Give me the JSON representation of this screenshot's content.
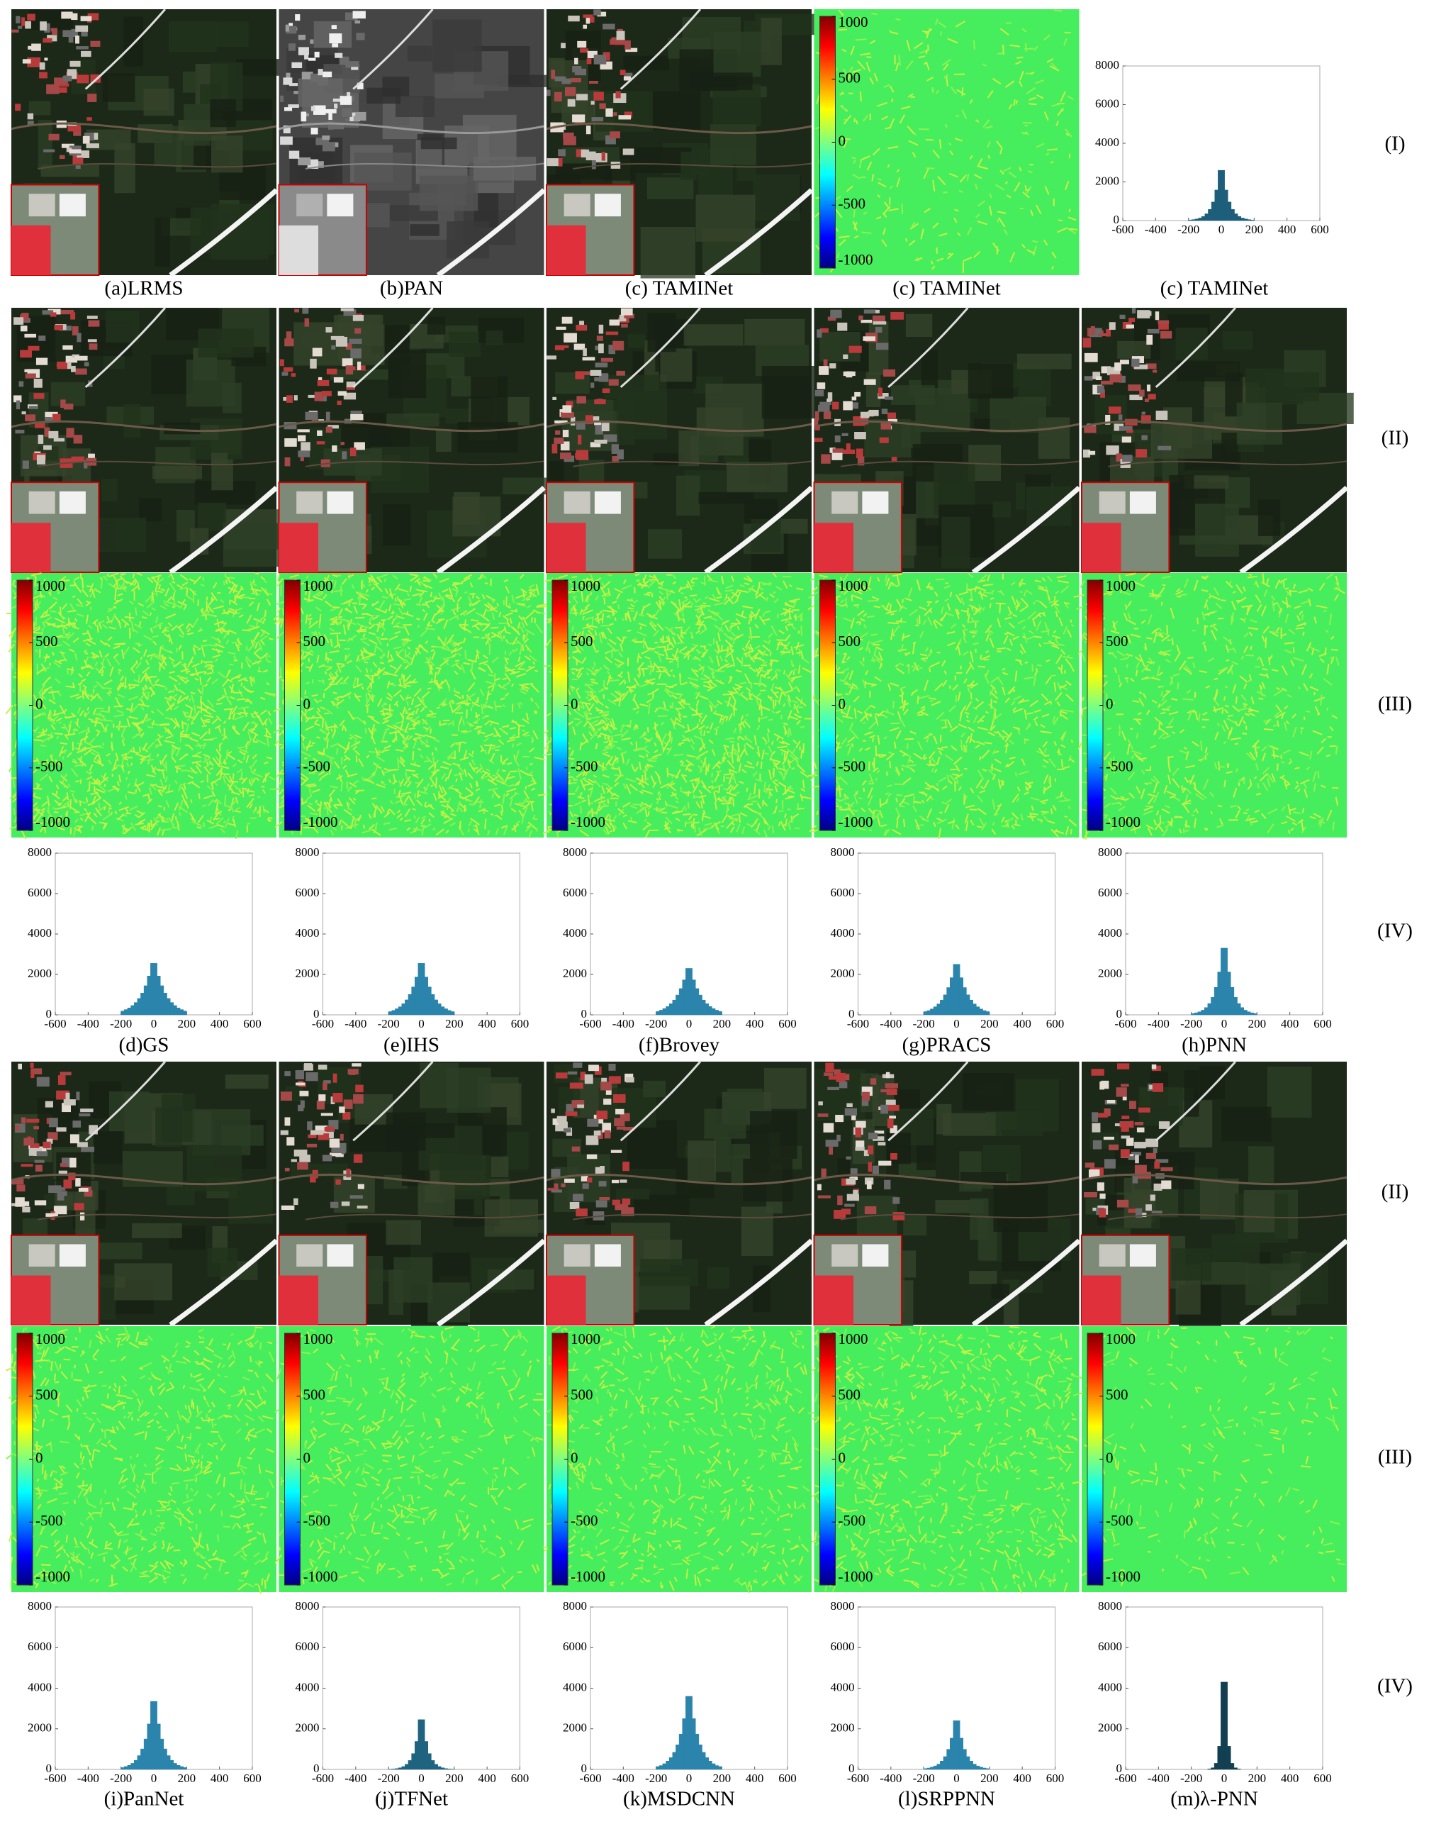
{
  "figure": {
    "row_labels": [
      "(I)",
      "(II)",
      "(III)",
      "(IV)",
      "(II)",
      "(III)",
      "(IV)"
    ],
    "captions": [
      "(a)LRMS",
      "(b)PAN",
      "(c) TAMINet",
      "(c) TAMINet",
      "(c) TAMINet",
      "(d)GS",
      "(e)IHS",
      "(f)Brovey",
      "(g)PRACS",
      "(h)PNN",
      "(i)PanNet",
      "(j)TFNet",
      "(k)MSDCNN",
      "(l)SRPPNN",
      "(m)λ-PNN"
    ],
    "colorbar": {
      "lim": [
        -1000,
        1000
      ],
      "ticks": [
        1000,
        500,
        0,
        -500,
        -1000
      ]
    }
  },
  "chart_data": [
    {
      "type": "histogram",
      "color": "#1d5f7a",
      "bins": [
        -200,
        -180,
        -160,
        -140,
        -120,
        -100,
        -80,
        -60,
        -40,
        -20,
        0,
        20,
        40,
        60,
        80,
        100,
        120,
        140,
        160,
        180,
        200
      ],
      "values": [
        30,
        50,
        80,
        130,
        210,
        350,
        580,
        960,
        1580,
        2600,
        2600,
        1580,
        960,
        580,
        350,
        210,
        130,
        80,
        50,
        30
      ],
      "xlim": [
        -600,
        600
      ],
      "xticks": [
        -600,
        -400,
        -200,
        0,
        200,
        400,
        600
      ],
      "ylim": [
        0,
        8000
      ],
      "yticks": [
        0,
        2000,
        4000,
        6000,
        8000
      ]
    },
    {
      "type": "histogram",
      "color": "#2b84ab",
      "bins": [
        -200,
        -180,
        -160,
        -140,
        -120,
        -100,
        -80,
        -60,
        -40,
        -20,
        0,
        20,
        40,
        60,
        80,
        100,
        120,
        140,
        160,
        180,
        200
      ],
      "values": [
        190,
        260,
        340,
        460,
        610,
        810,
        1080,
        1440,
        1920,
        2550,
        2550,
        1920,
        1440,
        1080,
        810,
        610,
        460,
        340,
        260,
        190
      ],
      "xlim": [
        -600,
        600
      ],
      "xticks": [
        -600,
        -400,
        -200,
        0,
        200,
        400,
        600
      ],
      "ylim": [
        0,
        8000
      ],
      "yticks": [
        0,
        2000,
        4000,
        6000,
        8000
      ]
    },
    {
      "type": "histogram",
      "color": "#2b84ab",
      "bins": [
        -200,
        -180,
        -160,
        -140,
        -120,
        -100,
        -80,
        -60,
        -40,
        -20,
        0,
        20,
        40,
        60,
        80,
        100,
        120,
        140,
        160,
        180,
        200
      ],
      "values": [
        160,
        220,
        300,
        400,
        550,
        740,
        1010,
        1380,
        1870,
        2550,
        2550,
        1870,
        1380,
        1010,
        740,
        550,
        400,
        300,
        220,
        160
      ],
      "xlim": [
        -600,
        600
      ],
      "xticks": [
        -600,
        -400,
        -200,
        0,
        200,
        400,
        600
      ],
      "ylim": [
        0,
        8000
      ],
      "yticks": [
        0,
        2000,
        4000,
        6000,
        8000
      ]
    },
    {
      "type": "histogram",
      "color": "#2b84ab",
      "bins": [
        -200,
        -180,
        -160,
        -140,
        -120,
        -100,
        -80,
        -60,
        -40,
        -20,
        0,
        20,
        40,
        60,
        80,
        100,
        120,
        140,
        160,
        180,
        200
      ],
      "values": [
        170,
        230,
        310,
        410,
        550,
        730,
        980,
        1300,
        1730,
        2300,
        2300,
        1730,
        1300,
        980,
        730,
        550,
        410,
        310,
        230,
        170
      ],
      "xlim": [
        -600,
        600
      ],
      "xticks": [
        -600,
        -400,
        -200,
        0,
        200,
        400,
        600
      ],
      "ylim": [
        0,
        8000
      ],
      "yticks": [
        0,
        2000,
        4000,
        6000,
        8000
      ]
    },
    {
      "type": "histogram",
      "color": "#2b84ab",
      "bins": [
        -200,
        -180,
        -160,
        -140,
        -120,
        -100,
        -80,
        -60,
        -40,
        -20,
        0,
        20,
        40,
        60,
        80,
        100,
        120,
        140,
        160,
        180,
        200
      ],
      "values": [
        160,
        210,
        290,
        400,
        540,
        730,
        990,
        1350,
        1840,
        2500,
        2500,
        1840,
        1350,
        990,
        730,
        540,
        400,
        290,
        210,
        160
      ],
      "xlim": [
        -600,
        600
      ],
      "xticks": [
        -600,
        -400,
        -200,
        0,
        200,
        400,
        600
      ],
      "ylim": [
        0,
        8000
      ],
      "yticks": [
        0,
        2000,
        4000,
        6000,
        8000
      ]
    },
    {
      "type": "histogram",
      "color": "#2b84ab",
      "bins": [
        -200,
        -180,
        -160,
        -140,
        -120,
        -100,
        -80,
        -60,
        -40,
        -20,
        0,
        20,
        40,
        60,
        80,
        100,
        120,
        140,
        160,
        180,
        200
      ],
      "values": [
        60,
        100,
        150,
        230,
        360,
        560,
        870,
        1360,
        2120,
        3300,
        3300,
        2120,
        1360,
        870,
        560,
        360,
        230,
        150,
        100,
        60
      ],
      "xlim": [
        -600,
        600
      ],
      "xticks": [
        -600,
        -400,
        -200,
        0,
        200,
        400,
        600
      ],
      "ylim": [
        0,
        8000
      ],
      "yticks": [
        0,
        2000,
        4000,
        6000,
        8000
      ]
    },
    {
      "type": "histogram",
      "color": "#2b84ab",
      "bins": [
        -200,
        -180,
        -160,
        -140,
        -120,
        -100,
        -80,
        -60,
        -40,
        -20,
        0,
        20,
        40,
        60,
        80,
        100,
        120,
        140,
        160,
        180,
        200
      ],
      "values": [
        90,
        140,
        200,
        300,
        450,
        680,
        1010,
        1500,
        2240,
        3350,
        3350,
        2240,
        1500,
        1010,
        680,
        450,
        300,
        200,
        140,
        90
      ],
      "xlim": [
        -600,
        600
      ],
      "xticks": [
        -600,
        -400,
        -200,
        0,
        200,
        400,
        600
      ],
      "ylim": [
        0,
        8000
      ],
      "yticks": [
        0,
        2000,
        4000,
        6000,
        8000
      ]
    },
    {
      "type": "histogram",
      "color": "#1e6480",
      "bins": [
        -200,
        -180,
        -160,
        -140,
        -120,
        -100,
        -80,
        -60,
        -40,
        -20,
        0,
        20,
        40,
        60,
        80,
        100,
        120,
        140,
        160,
        180,
        200
      ],
      "values": [
        10,
        20,
        40,
        80,
        140,
        250,
        440,
        780,
        1380,
        2450,
        2450,
        1380,
        780,
        440,
        250,
        140,
        80,
        40,
        20,
        10
      ],
      "xlim": [
        -600,
        600
      ],
      "xticks": [
        -600,
        -400,
        -200,
        0,
        200,
        400,
        600
      ],
      "ylim": [
        0,
        8000
      ],
      "yticks": [
        0,
        2000,
        4000,
        6000,
        8000
      ]
    },
    {
      "type": "histogram",
      "color": "#2b84ab",
      "bins": [
        -200,
        -180,
        -160,
        -140,
        -120,
        -100,
        -80,
        -60,
        -40,
        -20,
        0,
        20,
        40,
        60,
        80,
        100,
        120,
        140,
        160,
        180,
        200
      ],
      "values": [
        140,
        190,
        280,
        410,
        580,
        840,
        1210,
        1740,
        2500,
        3600,
        3600,
        2500,
        1740,
        1210,
        840,
        580,
        410,
        280,
        190,
        140
      ],
      "xlim": [
        -600,
        600
      ],
      "xticks": [
        -600,
        -400,
        -200,
        0,
        200,
        400,
        600
      ],
      "ylim": [
        0,
        8000
      ],
      "yticks": [
        0,
        2000,
        4000,
        6000,
        8000
      ]
    },
    {
      "type": "histogram",
      "color": "#2b84ab",
      "bins": [
        -200,
        -180,
        -160,
        -140,
        -120,
        -100,
        -80,
        -60,
        -40,
        -20,
        0,
        20,
        40,
        60,
        80,
        100,
        120,
        140,
        160,
        180,
        200
      ],
      "values": [
        40,
        70,
        110,
        170,
        260,
        410,
        630,
        990,
        1540,
        2400,
        2400,
        1540,
        990,
        630,
        410,
        260,
        170,
        110,
        70,
        40
      ],
      "xlim": [
        -600,
        600
      ],
      "xticks": [
        -600,
        -400,
        -200,
        0,
        200,
        400,
        600
      ],
      "ylim": [
        0,
        8000
      ],
      "yticks": [
        0,
        2000,
        4000,
        6000,
        8000
      ]
    },
    {
      "type": "histogram",
      "color": "#123f52",
      "bins": [
        -200,
        -180,
        -160,
        -140,
        -120,
        -100,
        -80,
        -60,
        -40,
        -20,
        0,
        20,
        40,
        60,
        80,
        100,
        120,
        140,
        160,
        180,
        200
      ],
      "values": [
        0,
        0,
        0,
        0,
        0,
        20,
        80,
        300,
        1140,
        4300,
        4300,
        1140,
        300,
        80,
        20,
        0,
        0,
        0,
        0,
        0
      ],
      "xlim": [
        -600,
        600
      ],
      "xticks": [
        -600,
        -400,
        -200,
        0,
        200,
        400,
        600
      ],
      "ylim": [
        0,
        8000
      ],
      "yticks": [
        0,
        2000,
        4000,
        6000,
        8000
      ]
    }
  ]
}
